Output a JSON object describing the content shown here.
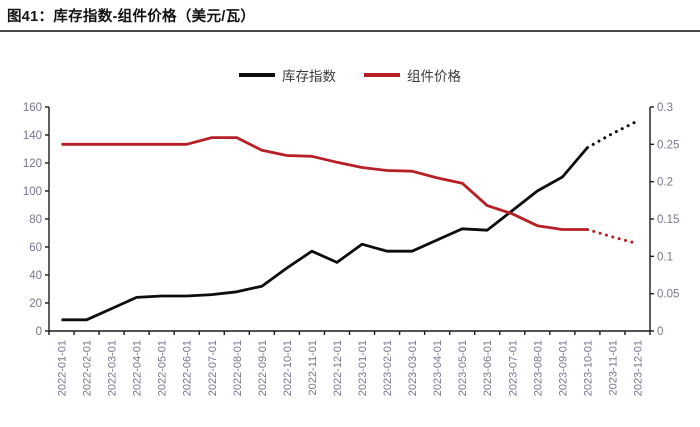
{
  "page": {
    "title": "图41：库存指数-组件价格（美元/瓦）"
  },
  "colors": {
    "series_black": "#0d0d0d",
    "series_red": "#b71f26",
    "axis_line": "#1a1a1a",
    "axis_text": "#76768a",
    "legend_text": "#3b3b3b",
    "divider": "#4a4a4a"
  },
  "chart_data": {
    "type": "line",
    "title": "库存指数-组件价格（美元/瓦）",
    "grid": false,
    "legend_position": "top",
    "categories": [
      "2022-01-01",
      "2022-02-01",
      "2022-03-01",
      "2022-04-01",
      "2022-05-01",
      "2022-06-01",
      "2022-07-01",
      "2022-08-01",
      "2022-09-01",
      "2022-10-01",
      "2022-11-01",
      "2022-12-01",
      "2023-01-01",
      "2023-02-01",
      "2023-03-01",
      "2023-04-01",
      "2023-05-01",
      "2023-06-01",
      "2023-07-01",
      "2023-08-01",
      "2023-09-01",
      "2023-10-01",
      "2023-11-01",
      "2023-12-01"
    ],
    "series": [
      {
        "name": "库存指数",
        "axis": "left",
        "color": "#0d0d0d",
        "solid_until_index": 21,
        "style_after": "dotted",
        "values": [
          8,
          8,
          16,
          24,
          25,
          25,
          26,
          28,
          32,
          45,
          57,
          49,
          62,
          57,
          57,
          65,
          73,
          72,
          86,
          100,
          110,
          131,
          141,
          150
        ]
      },
      {
        "name": "组件价格",
        "axis": "right",
        "color": "#b71f26",
        "solid_until_index": 21,
        "style_after": "dotted",
        "values": [
          0.25,
          0.25,
          0.25,
          0.25,
          0.25,
          0.25,
          0.259,
          0.259,
          0.242,
          0.235,
          0.234,
          0.226,
          0.219,
          0.215,
          0.214,
          0.205,
          0.198,
          0.168,
          0.157,
          0.141,
          0.136,
          0.136,
          0.126,
          0.117
        ]
      }
    ],
    "axes": {
      "left": {
        "min": 0,
        "max": 160,
        "tick_step": 20,
        "tick_labels": [
          "0",
          "20",
          "40",
          "60",
          "80",
          "100",
          "120",
          "140",
          "160"
        ]
      },
      "right": {
        "min": 0,
        "max": 0.3,
        "tick_step": 0.05,
        "tick_labels": [
          "0",
          "0.05",
          "0.1",
          "0.15",
          "0.2",
          "0.25",
          "0.3"
        ]
      }
    }
  }
}
